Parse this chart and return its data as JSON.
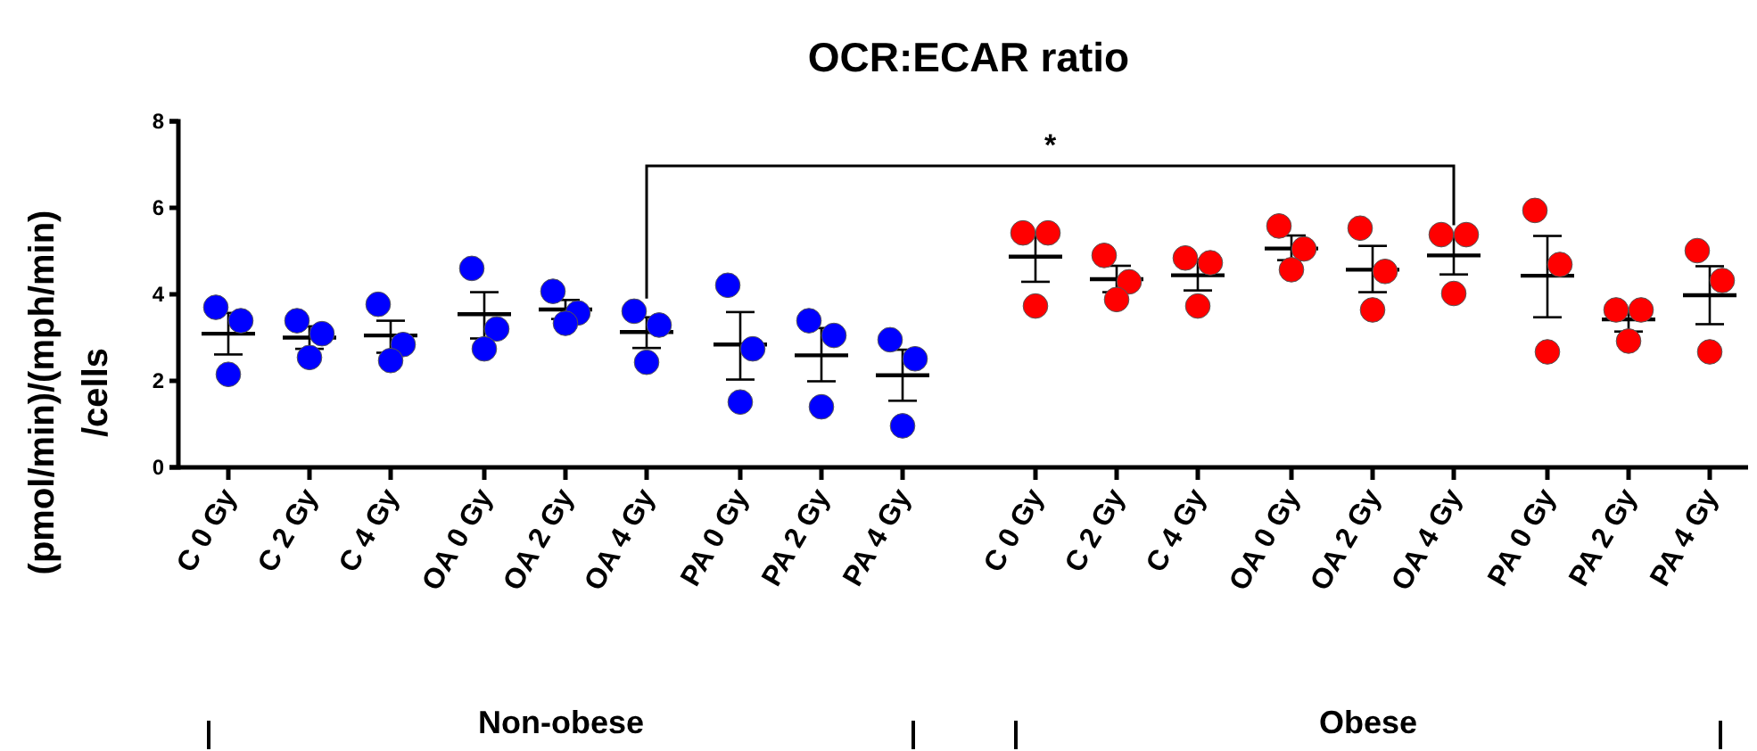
{
  "chart_data": [
    {
      "type": "box",
      "title": "OCR:ECAR ratio",
      "ylabel": "(pmol/min)/(mph/min)\n/cells",
      "xlabel": "Non-obese",
      "categories": [
        "C 0 Gy",
        "C 2 Gy",
        "C 4 Gy",
        "OA 0 Gy",
        "OA 2 Gy",
        "OA 4 Gy",
        "PA 0 Gy",
        "PA 2 Gy",
        "PA 4 Gy"
      ],
      "boxes": [
        {
          "low": 2.61,
          "q1": 3.09,
          "median": 3.09,
          "q3": 3.09,
          "high": 3.57
        },
        {
          "low": 2.74,
          "q1": 3.0,
          "median": 3.0,
          "q3": 3.0,
          "high": 3.26
        },
        {
          "low": 2.65,
          "q1": 3.05,
          "median": 3.05,
          "q3": 3.05,
          "high": 3.39
        },
        {
          "low": 2.98,
          "q1": 3.54,
          "median": 3.54,
          "q3": 3.54,
          "high": 4.05
        },
        {
          "low": 3.43,
          "q1": 3.65,
          "median": 3.65,
          "q3": 3.65,
          "high": 3.87
        },
        {
          "low": 2.76,
          "q1": 3.13,
          "median": 3.13,
          "q3": 3.13,
          "high": 3.47
        },
        {
          "low": 2.03,
          "q1": 2.84,
          "median": 2.84,
          "q3": 2.84,
          "high": 3.59
        },
        {
          "low": 1.99,
          "q1": 2.59,
          "median": 2.59,
          "q3": 2.59,
          "high": 3.22
        },
        {
          "low": 1.54,
          "q1": 2.13,
          "median": 2.13,
          "q3": 2.13,
          "high": 2.72
        }
      ],
      "series": [
        {
          "type": "scatter",
          "color": "#0000ff",
          "values": [
            3.7,
            3.39,
            3.77,
            4.6,
            4.07,
            3.61,
            4.21,
            3.39,
            2.95
          ]
        },
        {
          "type": "scatter",
          "color": "#0000ff",
          "values": [
            3.39,
            3.09,
            2.84,
            3.2,
            3.57,
            3.29,
            2.74,
            3.05,
            2.51
          ]
        },
        {
          "type": "scatter",
          "color": "#0000ff",
          "values": [
            2.15,
            2.54,
            2.47,
            2.74,
            3.33,
            2.43,
            1.51,
            1.4,
            0.96
          ]
        }
      ],
      "marker": "circle",
      "ylim": [
        0,
        8
      ],
      "yticks": [
        0,
        2,
        4,
        6,
        8
      ]
    },
    {
      "type": "box",
      "xlabel": "Obese",
      "categories": [
        "C 0 Gy",
        "C 2 Gy",
        "C 4 Gy",
        "OA 0 Gy",
        "OA 2 Gy",
        "OA 4 Gy",
        "PA 0 Gy",
        "PA 2 Gy",
        "PA 4 Gy"
      ],
      "boxes": [
        {
          "low": 4.29,
          "q1": 4.87,
          "median": 4.87,
          "q3": 4.87,
          "high": 5.42
        },
        {
          "low": 4.05,
          "q1": 4.35,
          "median": 4.35,
          "q3": 4.35,
          "high": 4.66
        },
        {
          "low": 4.09,
          "q1": 4.44,
          "median": 4.44,
          "q3": 4.44,
          "high": 4.8
        },
        {
          "low": 4.79,
          "q1": 5.06,
          "median": 5.06,
          "q3": 5.06,
          "high": 5.36
        },
        {
          "low": 4.05,
          "q1": 4.57,
          "median": 4.57,
          "q3": 4.57,
          "high": 5.12
        },
        {
          "low": 4.46,
          "q1": 4.9,
          "median": 4.9,
          "q3": 4.9,
          "high": 5.35
        },
        {
          "low": 3.47,
          "q1": 4.43,
          "median": 4.43,
          "q3": 4.43,
          "high": 5.35
        },
        {
          "low": 3.14,
          "q1": 3.42,
          "median": 3.42,
          "q3": 3.42,
          "high": 3.61
        },
        {
          "low": 3.31,
          "q1": 3.98,
          "median": 3.98,
          "q3": 3.98,
          "high": 4.65
        }
      ],
      "series": [
        {
          "type": "scatter",
          "color": "#ff0000",
          "values": [
            5.42,
            4.9,
            4.84,
            5.58,
            5.53,
            5.38,
            5.94,
            3.64,
            5.01
          ]
        },
        {
          "type": "scatter",
          "color": "#ff0000",
          "values": [
            5.42,
            4.29,
            4.73,
            5.05,
            4.53,
            5.38,
            4.69,
            3.64,
            4.32
          ]
        },
        {
          "type": "scatter",
          "color": "#ff0000",
          "values": [
            3.73,
            3.88,
            3.73,
            4.57,
            3.64,
            4.02,
            2.67,
            2.92,
            2.67
          ]
        }
      ],
      "marker": "circle",
      "ylim": [
        0,
        8
      ],
      "yticks": [
        0,
        2,
        4,
        6,
        8
      ],
      "tick_labels": "x",
      "annotations": [
        "*"
      ]
    }
  ]
}
